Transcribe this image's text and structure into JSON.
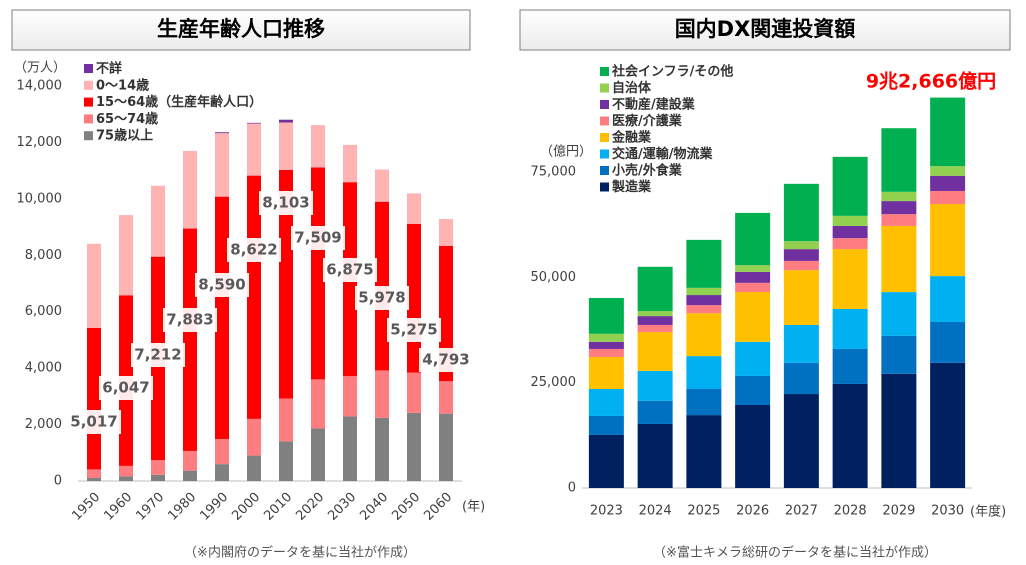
{
  "chart_data": [
    {
      "type": "bar",
      "stacked": true,
      "title": "生産年齢人口推移",
      "y_label": "（万人）",
      "x_unit": "(年)",
      "note": "（※内閣府のデータを基に当社が作成）",
      "legend": "upper left",
      "grid": false,
      "categories": [
        "1950",
        "1960",
        "1970",
        "1980",
        "1990",
        "2000",
        "2010",
        "2020",
        "2030",
        "2040",
        "2050",
        "2060"
      ],
      "ylim": [
        0,
        14000
      ],
      "yticks": [
        0,
        {
          "value": 2000,
          "label": "2,000"
        },
        {
          "value": 4000,
          "label": "4,000"
        },
        {
          "value": 6000,
          "label": "6,000"
        },
        {
          "value": 8000,
          "label": "8,000"
        },
        {
          "value": 10000,
          "label": "10,000"
        },
        {
          "value": 12000,
          "label": "12,000"
        },
        {
          "value": 14000,
          "label": "14,000"
        }
      ],
      "series": [
        {
          "name": "75歳以上",
          "color": "#808080",
          "values": [
            107,
            163,
            221,
            366,
            597,
            901,
            1407,
            1860,
            2288,
            2239,
            2417,
            2387
          ]
        },
        {
          "name": "65〜74歳",
          "color": "#ff7c80",
          "values": [
            304,
            372,
            518,
            699,
            892,
            1301,
            1517,
            1742,
            1428,
            1681,
            1424,
            1153
          ]
        },
        {
          "name": "15〜64歳（生産年齢人口）",
          "color": "#ff0000",
          "values": [
            5017,
            6047,
            7212,
            7883,
            8590,
            8622,
            8103,
            7509,
            6875,
            5978,
            5275,
            4793
          ],
          "value_labels": [
            "5,017",
            "6,047",
            "7,212",
            "7,883",
            "8,590",
            "8,622",
            "8,103",
            "7,509",
            "6,875",
            "5,978",
            "5,275",
            "4,793"
          ]
        },
        {
          "name": "0〜14歳",
          "color": "#ffb3b3",
          "values": [
            2979,
            2843,
            2515,
            2751,
            2249,
            1847,
            1680,
            1503,
            1321,
            1142,
            1077,
            951
          ]
        },
        {
          "name": "不詳",
          "color": "#7030a0",
          "values": [
            0,
            0,
            0,
            0,
            33,
            23,
            98,
            0,
            0,
            0,
            0,
            0
          ]
        }
      ]
    },
    {
      "type": "bar",
      "stacked": true,
      "title": "国内DX関連投資額",
      "y_label": "（億円）",
      "x_unit": "(年度)",
      "note": "（※富士キメラ総研のデータを基に当社が作成）",
      "annotation": "9兆2,666億円",
      "legend": "upper left",
      "grid": false,
      "categories": [
        "2023",
        "2024",
        "2025",
        "2026",
        "2027",
        "2028",
        "2029",
        "2030"
      ],
      "ylim": [
        0,
        100000
      ],
      "yticks": [
        0,
        {
          "value": 25000,
          "label": "25,000"
        },
        {
          "value": 50000,
          "label": "50,000"
        },
        {
          "value": 75000,
          "label": "75,000"
        }
      ],
      "series": [
        {
          "name": "製造業",
          "color": "#002060",
          "values": [
            12600,
            15200,
            17300,
            19700,
            22300,
            24700,
            27100,
            29700
          ]
        },
        {
          "name": "小売/外食業",
          "color": "#0070c0",
          "values": [
            4500,
            5500,
            6200,
            6900,
            7400,
            8300,
            9000,
            9700
          ]
        },
        {
          "name": "交通/運輸/物流業",
          "color": "#00b0f0",
          "values": [
            6400,
            7100,
            7800,
            8100,
            9000,
            9500,
            10400,
            10900
          ]
        },
        {
          "name": "金融業",
          "color": "#ffc000",
          "values": [
            7600,
            9200,
            10200,
            11800,
            13000,
            14200,
            15700,
            17100
          ]
        },
        {
          "name": "医療/介護業",
          "color": "#ff7c80",
          "values": [
            1900,
            1700,
            1900,
            2200,
            2200,
            2600,
            2800,
            3100
          ]
        },
        {
          "name": "不動産/建設業",
          "color": "#7030a0",
          "values": [
            1700,
            2100,
            2400,
            2600,
            2800,
            2900,
            3100,
            3600
          ]
        },
        {
          "name": "自治体",
          "color": "#92d050",
          "values": [
            1900,
            1200,
            1700,
            1600,
            1900,
            2400,
            2200,
            2300
          ]
        },
        {
          "name": "社会インフラ/その他",
          "color": "#00b050",
          "values": [
            8500,
            10500,
            11400,
            12400,
            13600,
            14000,
            15100,
            16266
          ]
        }
      ]
    }
  ]
}
